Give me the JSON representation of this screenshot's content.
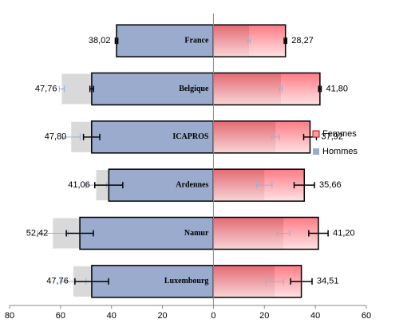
{
  "chart_data": {
    "type": "butterfly-bar",
    "categories": [
      "France",
      "Belgique",
      "ICAPROS",
      "Ardennes",
      "Namur",
      "Luxembourg"
    ],
    "xlim": [
      -80,
      60
    ],
    "xticks": [
      {
        "value": -80,
        "label": "80"
      },
      {
        "value": -60,
        "label": "60"
      },
      {
        "value": -40,
        "label": "40"
      },
      {
        "value": -20,
        "label": "20"
      },
      0,
      20,
      40,
      60
    ],
    "series": [
      {
        "name": "Hommes",
        "side": "left",
        "color": "#9aabcd",
        "values": [
          38.02,
          47.76,
          47.8,
          41.06,
          52.42,
          47.76
        ],
        "value_labels": [
          "38,02",
          "47,76",
          "47,80",
          "41,06",
          "52,42",
          "47,76"
        ],
        "errors": [
          0.5,
          0.7,
          3.2,
          5.5,
          5.3,
          6.6
        ]
      },
      {
        "name": "Femmes",
        "side": "right",
        "color": "#f7a0a6",
        "values": [
          28.27,
          41.8,
          37.92,
          35.66,
          41.2,
          34.51
        ],
        "value_labels": [
          "28,27",
          "41,80",
          "37,92",
          "35,66",
          "41,20",
          "34,51"
        ],
        "errors": [
          0.5,
          0.5,
          2.5,
          4.0,
          3.8,
          4.2
        ]
      },
      {
        "side": "left",
        "color": "#d9d9d9",
        "values": [
          35,
          59.5,
          55.8,
          46,
          63,
          55
        ],
        "errors": [
          0.5,
          1.0,
          3.5,
          4.0,
          6.0,
          5.0
        ]
      },
      {
        "side": "right",
        "color": "#e8878d",
        "values": [
          14,
          26.5,
          24.4,
          20,
          27.5,
          24
        ],
        "errors": [
          0.5,
          0.5,
          1.5,
          3.0,
          2.5,
          3.5
        ]
      }
    ],
    "legend": "right"
  }
}
